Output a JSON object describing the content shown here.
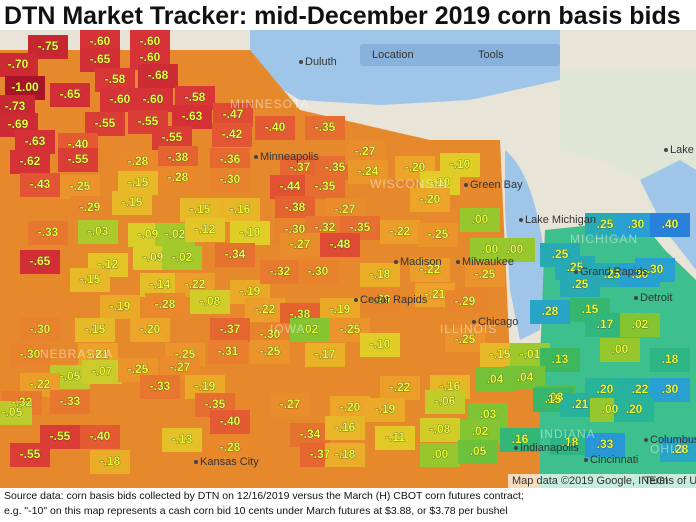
{
  "header": {
    "title": "DTN Market Tracker: mid-December 2019 corn basis bids"
  },
  "map": {
    "controls": [
      "Location",
      "Tools"
    ],
    "cities": [
      "Duluth",
      "Minneapolis",
      "Green Bay",
      "Milwaukee",
      "Madison",
      "Cedar Rapids",
      "Chicago",
      "Detroit",
      "Indianapolis",
      "Cincinnati",
      "Columbus",
      "Kansas City",
      "Lake Michigan",
      "Lake Huron",
      "Grand Rapids"
    ],
    "states": [
      "MINNESOTA",
      "WISCONSIN",
      "IOWA",
      "ILLINOIS",
      "MICHIGAN",
      "NEBRASKA",
      "INDIANA",
      "OHIO"
    ],
    "bids": [
      "-.75",
      "-.60",
      "-.60",
      "-.70",
      "-.65",
      "-.60",
      "-1.00",
      "-.65",
      "-.58",
      "-.68",
      "-.58",
      "-.60",
      "-.60",
      "-.73",
      "-.55",
      "-.55",
      "-.63",
      "-.47",
      "-.69",
      "-.63",
      "-.40",
      "-.55",
      "-.42",
      "-.40",
      "-.35",
      "-.62",
      "-.55",
      "-.28",
      "-.38",
      "-.36",
      "-.37",
      "-.35",
      "-.27",
      "-.20",
      "-.10",
      "-.43",
      "-.25",
      "-.15",
      "-.28",
      "-.30",
      "-.44",
      "-.35",
      "-.24",
      "-.10",
      "-.29",
      "-.15",
      "-.15",
      "-.16",
      "-.38",
      "-.27",
      "-.20",
      "-.33",
      "-.03",
      "-.09",
      "-.02",
      "-.12",
      "-.10",
      "-.30",
      "-.32",
      "-.35",
      "-.22",
      "-.25",
      ".00",
      "-.65",
      "-.12",
      "-.09",
      "-.02",
      "-.34",
      "-.27",
      "-.48",
      "-.22",
      ".00",
      "-.25",
      "-.15",
      "-.14",
      "-.22",
      "-.19",
      "-.32",
      "-.30",
      "-.18",
      "-.21",
      "-.19",
      "-.28",
      "-.08",
      "-.22",
      "-.38",
      "-.19",
      "-.29",
      "-.29",
      "-.30",
      "-.15",
      "-.20",
      "-.37",
      "-.30",
      ".02",
      "-.25",
      "-.10",
      "-.30",
      "-.21",
      "-.25",
      "-.31",
      "-.25",
      "-.17",
      "-.25",
      "-.15",
      "-.05",
      "-.07",
      "-.25",
      "-.27",
      "-.01",
      ".13",
      ".00",
      ".18",
      "-.22",
      "-.33",
      "-.19",
      "-.22",
      "-.16",
      ".04",
      ".04",
      ".08",
      ".20",
      ".22",
      ".30",
      "-.32",
      "-.33",
      "-.35",
      "-.27",
      "-.20",
      "-.19",
      "-.06",
      ".03",
      ".15",
      ".21",
      ".00",
      ".20",
      "-.05",
      "-.55",
      "-.40",
      "-.13",
      "-.40",
      "-.34",
      "-.16",
      "-.11",
      "-.08",
      ".02",
      ".16",
      ".18",
      ".33",
      "-.55",
      "-.18",
      "-.28",
      "-.37",
      "-.18",
      ".00",
      ".05",
      ".28",
      ".25",
      ".25",
      ".30",
      ".40",
      ".25",
      ".25",
      ".30",
      ".25",
      ".15",
      ".17",
      ".02",
      ".28",
      ".00",
      ".30"
    ],
    "attribution": "Map data ©2019 Google, INEGI",
    "terms": "Terms of Use"
  },
  "footer": {
    "lines": [
      "Source data: corn basis bids collected by DTN on 12/16/2019 versus the March (H) CBOT corn futures contract;",
      "e.g. \"-10\" on this map represents a cash corn bid 10 cents under March futures at $3.88, or $3.78 per bushel"
    ]
  }
}
